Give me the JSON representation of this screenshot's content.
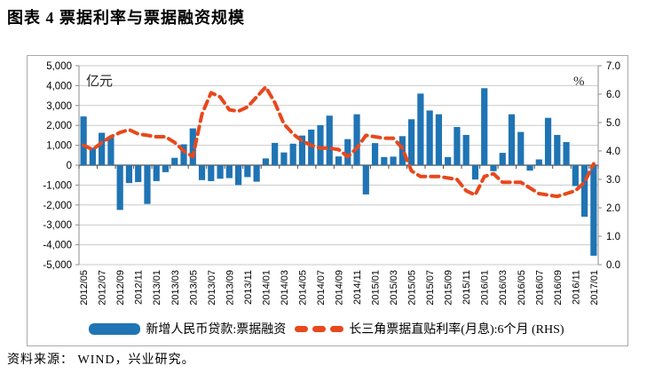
{
  "title": "图表 4  票据利率与票据融资规模",
  "source_note": "资料来源： WIND，兴业研究。",
  "colors": {
    "bar": "#1f74b4",
    "line": "#e8481c",
    "grid": "#c9c9c9",
    "axis": "#8c8c8c",
    "zero_axis": "#4d4d4d"
  },
  "chart_data": {
    "type": "bar",
    "subtype": "bar-left-axis with dashed line on right axis",
    "unit_left": "亿元",
    "unit_right": "%",
    "categories": [
      "2012/05",
      "2012/06",
      "2012/07",
      "2012/08",
      "2012/09",
      "2012/10",
      "2012/11",
      "2012/12",
      "2013/01",
      "2013/02",
      "2013/03",
      "2013/04",
      "2013/05",
      "2013/06",
      "2013/07",
      "2013/08",
      "2013/09",
      "2013/10",
      "2013/11",
      "2013/12",
      "2014/01",
      "2014/02",
      "2014/03",
      "2014/04",
      "2014/05",
      "2014/06",
      "2014/07",
      "2014/08",
      "2014/09",
      "2014/10",
      "2014/11",
      "2014/12",
      "2015/01",
      "2015/02",
      "2015/03",
      "2015/04",
      "2015/05",
      "2015/06",
      "2015/07",
      "2015/08",
      "2015/09",
      "2015/10",
      "2015/11",
      "2015/12",
      "2016/01",
      "2016/02",
      "2016/03",
      "2016/04",
      "2016/05",
      "2016/06",
      "2016/07",
      "2016/08",
      "2016/09",
      "2016/10",
      "2016/11",
      "2016/12",
      "2017/01"
    ],
    "x_tick_every": 2,
    "series": [
      {
        "name": "新增人民币贷款:票据融资",
        "type": "bar",
        "axis": "left",
        "values": [
          2450,
          880,
          1630,
          1400,
          -2250,
          -900,
          -850,
          -1950,
          -800,
          -350,
          370,
          1050,
          1850,
          -750,
          -800,
          -680,
          -650,
          -1000,
          -600,
          -830,
          340,
          1120,
          640,
          1080,
          1490,
          1790,
          2010,
          2490,
          440,
          1310,
          2560,
          -1470,
          1110,
          410,
          430,
          1460,
          2310,
          3600,
          2750,
          2560,
          410,
          1920,
          1520,
          -720,
          3870,
          -300,
          620,
          2560,
          1670,
          -270,
          290,
          2380,
          1520,
          1160,
          -1050,
          -2590,
          -4550
        ]
      },
      {
        "name": "长三角票据直贴利率(月息):6个月 (RHS)",
        "type": "line",
        "dashed": true,
        "axis": "right",
        "values": [
          4.2,
          4.05,
          4.3,
          4.5,
          4.65,
          4.75,
          4.6,
          4.55,
          4.5,
          4.5,
          4.3,
          4.0,
          3.8,
          5.3,
          6.05,
          5.9,
          5.45,
          5.4,
          5.55,
          5.9,
          6.25,
          5.7,
          4.95,
          4.6,
          4.35,
          4.2,
          4.1,
          4.1,
          4.05,
          3.8,
          4.1,
          4.55,
          4.5,
          4.45,
          4.45,
          4.1,
          3.3,
          3.1,
          3.1,
          3.1,
          3.05,
          3.0,
          2.6,
          2.45,
          3.1,
          3.2,
          2.9,
          2.9,
          2.9,
          2.7,
          2.5,
          2.45,
          2.4,
          2.5,
          2.6,
          2.9,
          3.55
        ]
      }
    ],
    "left_axis": {
      "min": -5000,
      "max": 5000,
      "step": 1000,
      "tick_labels": [
        "5,000",
        "4,000",
        "3,000",
        "2,000",
        "1,000",
        "0",
        "-1,000",
        "-2,000",
        "-3,000",
        "-4,000",
        "-5,000"
      ]
    },
    "right_axis": {
      "min": 0,
      "max": 7,
      "step": 1,
      "tick_labels": [
        "7.0",
        "6.0",
        "5.0",
        "4.0",
        "3.0",
        "2.0",
        "1.0",
        "0.0"
      ]
    },
    "grid": true,
    "legend_position": "bottom"
  }
}
